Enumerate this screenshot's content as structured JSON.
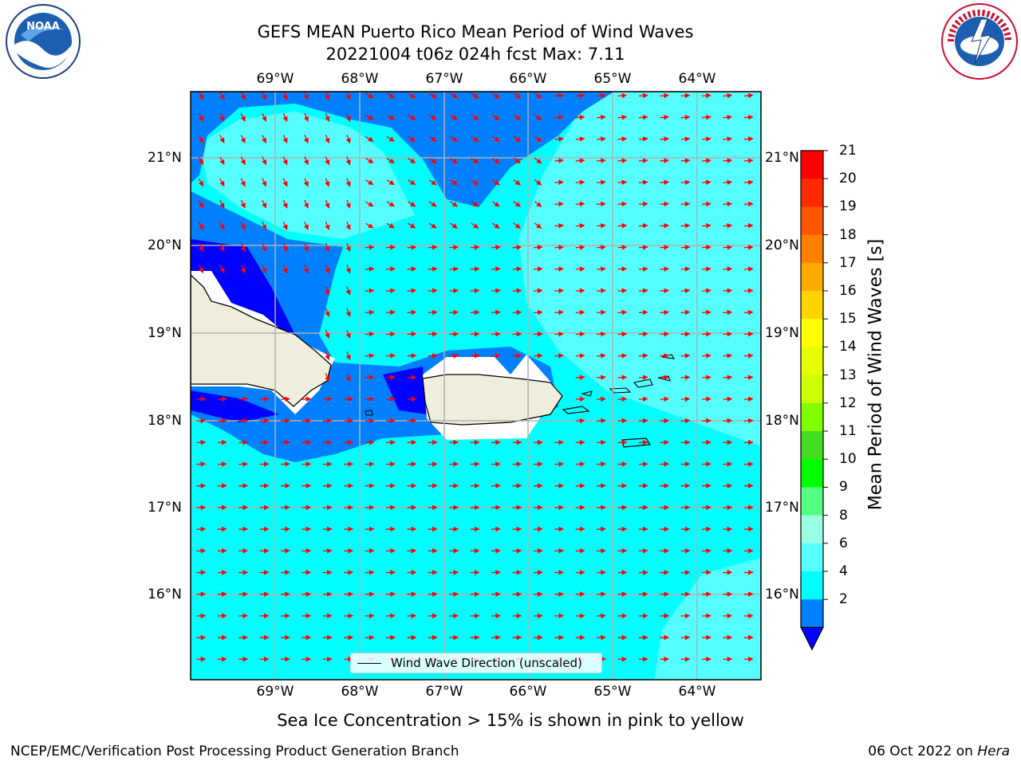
{
  "header": {
    "title_line1": "GEFS MEAN Puerto Rico Mean Period of Wind Waves",
    "title_line2": "20221004 t06z 024h fcst   Max: 7.11"
  },
  "logos": {
    "left": "noaa-logo",
    "right": "nws-logo"
  },
  "map": {
    "lon_labels": [
      "69°W",
      "68°W",
      "67°W",
      "66°W",
      "65°W",
      "64°W"
    ],
    "lat_labels": [
      "21°N",
      "20°N",
      "19°N",
      "18°N",
      "17°N",
      "16°N"
    ],
    "legend_label": "Wind Wave Direction (unscaled)",
    "arrow_color": "#ff0000",
    "land_color": "#efeedc"
  },
  "colorbar": {
    "label": "Mean Period of Wind Waves [s]",
    "ticks": [
      "21",
      "20",
      "19",
      "18",
      "17",
      "16",
      "15",
      "14",
      "13",
      "12",
      "11",
      "10",
      "9",
      "8",
      "6",
      "4",
      "2"
    ],
    "colors": [
      "#ff0000",
      "#ff2a00",
      "#ff5500",
      "#ff8000",
      "#ffaa00",
      "#ffd400",
      "#ffff00",
      "#e6ff00",
      "#ccff00",
      "#80ff00",
      "#44dd22",
      "#00ff00",
      "#55ff80",
      "#9bffe6",
      "#55ffff",
      "#00ffff",
      "#0080ff"
    ],
    "extend_color": "#0000ff"
  },
  "note": "Sea Ice Concentration > 15% is shown in pink to yellow",
  "footer": {
    "left": "NCEP/EMC/Verification Post Processing Product Generation Branch",
    "right_date": "06 Oct 2022 on",
    "right_host": "Hera"
  }
}
